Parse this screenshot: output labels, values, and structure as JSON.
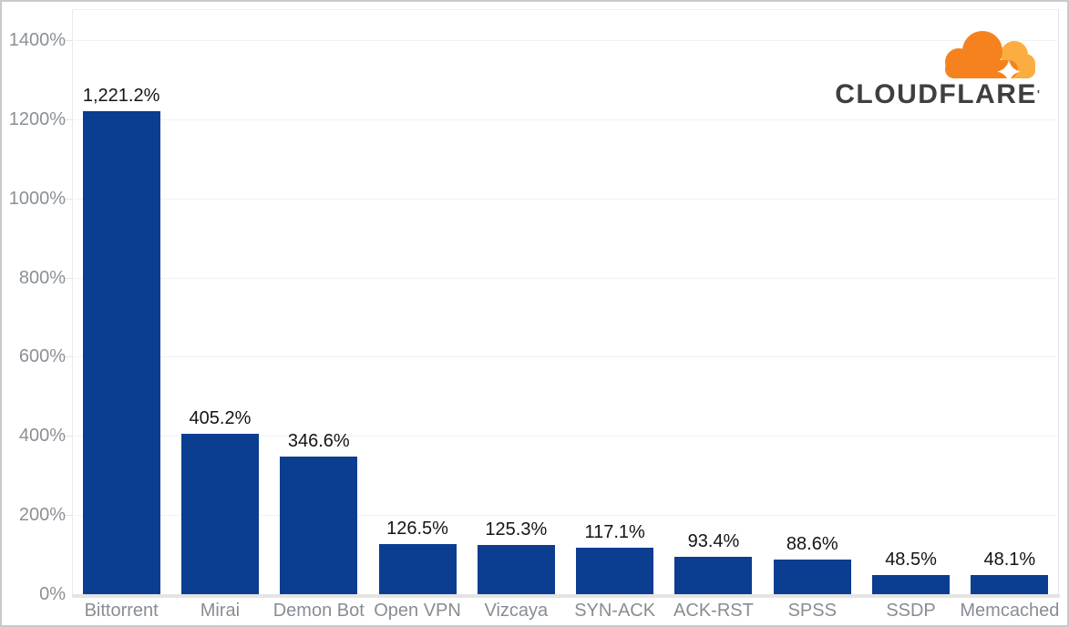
{
  "page": {
    "background": "#ffffff",
    "frame_border_color": "#c9c9c9"
  },
  "logo": {
    "brand": "Cloudflare",
    "wordmark": "CLOUDFLARE",
    "trademark": "'",
    "cloud_primary_color": "#F6821F",
    "cloud_secondary_color": "#FBAD41",
    "wordmark_color": "#3E3F40"
  },
  "chart_data": {
    "type": "bar",
    "title": "",
    "xlabel": "",
    "ylabel": "",
    "categories": [
      "Bittorrent",
      "Mirai",
      "Demon Bot",
      "Open VPN",
      "Vizcaya",
      "SYN-ACK",
      "ACK-RST",
      "SPSS",
      "SSDP",
      "Memcached"
    ],
    "values": [
      1221.2,
      405.2,
      346.6,
      126.5,
      125.3,
      117.1,
      93.4,
      88.6,
      48.5,
      48.1
    ],
    "value_labels": [
      "1,221.2%",
      "405.2%",
      "346.6%",
      "126.5%",
      "125.3%",
      "117.1%",
      "93.4%",
      "88.6%",
      "48.5%",
      "48.1%"
    ],
    "ylim": [
      0,
      1478
    ],
    "yticks": [
      0,
      200,
      400,
      600,
      800,
      1000,
      1200,
      1400
    ],
    "ytick_labels": [
      "0%",
      "200%",
      "400%",
      "600%",
      "800%",
      "1000%",
      "1200%",
      "1400%"
    ],
    "grid": true,
    "legend": false,
    "bar_color": "#0B3D91",
    "value_label_color": "#141414",
    "axis_text_color": "#8B9096",
    "gridline_color": "#F2F2F2",
    "baseline_color": "#E4E4E4"
  }
}
